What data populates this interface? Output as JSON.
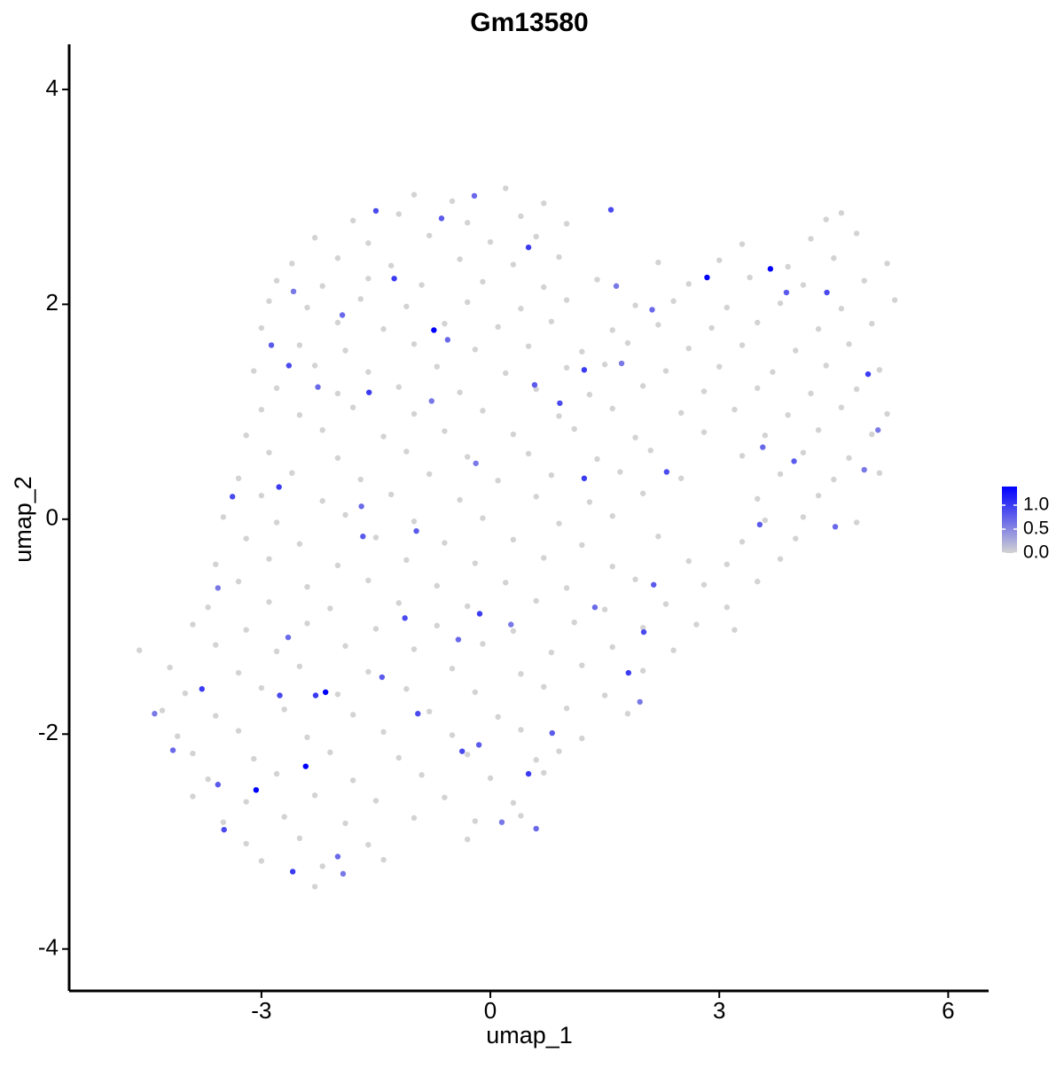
{
  "chart_data": {
    "type": "scatter",
    "title": "Gm13580",
    "x_label": "umap_1",
    "y_label": "umap_2",
    "xlim": [
      -5.52,
      6.53
    ],
    "ylim": [
      -4.39,
      4.42
    ],
    "xticks": [
      -3,
      0,
      3,
      6
    ],
    "yticks": [
      -4,
      -2,
      0,
      2,
      4
    ],
    "color_low": "#d3d3d3",
    "color_high": "#0000ff",
    "clim": [
      0,
      1.39
    ],
    "cticks": [
      {
        "value": 0,
        "label": "0.0"
      },
      {
        "value": 0.5,
        "label": "0.5"
      },
      {
        "value": 1,
        "label": "1.0"
      }
    ],
    "x": [
      -1.0,
      -0.5,
      0.2,
      0.7,
      -1.8,
      -1.2,
      -0.3,
      0.4,
      1.0,
      4.6,
      4.4,
      -2.3,
      -1.6,
      -0.8,
      0.0,
      0.6,
      3.3,
      4.2,
      4.8,
      -2.6,
      -2.0,
      -1.3,
      -0.4,
      0.3,
      0.9,
      2.2,
      3.0,
      3.9,
      4.5,
      5.2,
      -2.8,
      -2.2,
      -1.6,
      -0.9,
      -0.1,
      0.7,
      1.4,
      2.6,
      3.4,
      4.1,
      4.9,
      -2.9,
      -2.4,
      -1.7,
      -1.1,
      -0.3,
      0.4,
      1.0,
      1.9,
      2.4,
      3.1,
      3.8,
      4.6,
      5.3,
      -3.0,
      -2.0,
      -1.4,
      -0.6,
      0.1,
      0.8,
      1.6,
      2.2,
      2.9,
      3.5,
      4.3,
      5.0,
      -2.5,
      -1.9,
      -1.0,
      -0.2,
      0.5,
      1.2,
      1.8,
      2.6,
      3.3,
      4.0,
      4.7,
      -3.1,
      -2.3,
      -1.6,
      -0.7,
      0.2,
      1.0,
      1.5,
      2.3,
      3.0,
      3.7,
      4.4,
      5.1,
      -2.8,
      -2.0,
      -1.2,
      -0.4,
      0.6,
      1.3,
      2.0,
      2.8,
      3.5,
      4.2,
      4.8,
      -3.0,
      -2.5,
      -1.8,
      -1.0,
      -0.1,
      0.9,
      1.6,
      2.5,
      3.2,
      3.9,
      4.6,
      5.2,
      -3.2,
      -2.2,
      -1.4,
      -0.6,
      0.3,
      1.1,
      1.9,
      2.8,
      3.6,
      4.3,
      5.0,
      -2.9,
      -2.0,
      -1.1,
      -0.3,
      0.5,
      1.4,
      2.1,
      3.3,
      4.1,
      4.7,
      -3.3,
      -2.6,
      -1.7,
      -0.8,
      0.1,
      0.8,
      1.7,
      2.5,
      3.8,
      4.5,
      5.1,
      -3.0,
      -2.2,
      -1.3,
      -0.4,
      0.6,
      1.3,
      2.0,
      3.5,
      4.3,
      -3.5,
      -2.8,
      -1.9,
      -1.0,
      -0.1,
      0.9,
      1.6,
      3.6,
      4.1,
      4.8,
      -3.2,
      -2.5,
      -1.5,
      -0.6,
      0.3,
      1.2,
      2.2,
      3.3,
      4.0,
      -3.6,
      -2.9,
      -2.0,
      -1.1,
      -0.2,
      0.7,
      1.6,
      2.6,
      3.1,
      3.8,
      -3.3,
      -2.4,
      -1.6,
      -0.7,
      0.2,
      1.0,
      1.9,
      2.8,
      3.5,
      -3.7,
      -2.9,
      -2.1,
      -1.2,
      -0.3,
      0.6,
      1.5,
      2.3,
      3.1,
      -3.9,
      -3.2,
      -2.4,
      -1.5,
      -0.7,
      0.3,
      1.1,
      2.0,
      2.7,
      3.2,
      -4.6,
      -3.6,
      -2.8,
      -1.9,
      -1.0,
      -0.1,
      0.8,
      1.6,
      2.4,
      -4.2,
      -3.3,
      -2.5,
      -1.6,
      -0.5,
      0.4,
      1.2,
      2.0,
      -4.0,
      -3.0,
      -2.0,
      -1.1,
      -0.2,
      0.7,
      1.5,
      -4.3,
      -3.6,
      -2.7,
      -1.8,
      -0.8,
      0.1,
      1.0,
      1.8,
      -4.1,
      -3.3,
      -2.4,
      -1.4,
      -0.5,
      0.4,
      1.2,
      -3.9,
      -3.1,
      -2.1,
      -1.2,
      -0.3,
      0.6,
      0.9,
      -3.7,
      -2.8,
      -1.8,
      -0.9,
      0.0,
      0.7,
      -3.9,
      -3.2,
      -2.3,
      -1.5,
      -0.6,
      0.3,
      -3.5,
      -2.7,
      -1.9,
      -1.0,
      -0.2,
      0.4,
      -3.2,
      -2.5,
      -1.6,
      -0.3,
      -3.0,
      -2.2,
      -1.4,
      -2.3,
      -0.74,
      2.84,
      3.67,
      -2.16,
      -2.42,
      -3.07,
      -0.21,
      -0.64,
      -1.5,
      -1.26,
      -2.58,
      -1.94,
      -2.87,
      -2.64,
      -1.59,
      -0.77,
      -0.56,
      0.58,
      0.91,
      1.23,
      1.72,
      2.12,
      3.88,
      4.41,
      4.95,
      5.08,
      3.57,
      3.98,
      2.31,
      1.23,
      -0.19,
      -1.69,
      -0.97,
      -3.38,
      -2.77,
      -3.57,
      -2.65,
      -1.67,
      -1.12,
      -0.14,
      0.27,
      1.37,
      2.14,
      2.01,
      1.81,
      1.96,
      -0.42,
      -1.42,
      -2.76,
      -3.78,
      -4.4,
      -4.16,
      -3.57,
      -3.49,
      -2.59,
      -1.93,
      -2.0,
      -0.15,
      -0.37,
      0.5,
      0.15,
      0.6,
      0.81,
      -0.95,
      -2.29,
      4.9,
      4.52,
      3.53,
      1.58,
      0.5,
      1.65,
      -2.26
    ],
    "y": [
      3.02,
      2.96,
      3.08,
      2.94,
      2.78,
      2.84,
      2.76,
      2.82,
      2.75,
      2.85,
      2.79,
      2.62,
      2.57,
      2.64,
      2.58,
      2.63,
      2.56,
      2.61,
      2.66,
      2.38,
      2.43,
      2.36,
      2.42,
      2.37,
      2.44,
      2.39,
      2.41,
      2.35,
      2.43,
      2.38,
      2.22,
      2.17,
      2.24,
      2.18,
      2.21,
      2.16,
      2.23,
      2.19,
      2.25,
      2.18,
      2.22,
      2.03,
      1.97,
      2.05,
      1.98,
      2.02,
      1.96,
      2.04,
      1.99,
      2.03,
      1.97,
      2.01,
      1.96,
      2.04,
      1.78,
      1.83,
      1.77,
      1.82,
      1.79,
      1.84,
      1.76,
      1.81,
      1.78,
      1.83,
      1.77,
      1.82,
      1.62,
      1.57,
      1.63,
      1.58,
      1.61,
      1.56,
      1.64,
      1.59,
      1.62,
      1.57,
      1.63,
      1.38,
      1.43,
      1.37,
      1.42,
      1.36,
      1.41,
      1.44,
      1.38,
      1.42,
      1.37,
      1.43,
      1.39,
      1.22,
      1.17,
      1.23,
      1.18,
      1.21,
      1.16,
      1.24,
      1.19,
      1.22,
      1.17,
      1.21,
      1.02,
      0.97,
      1.04,
      0.98,
      1.01,
      0.96,
      1.03,
      0.99,
      1.02,
      0.97,
      1.04,
      0.98,
      0.78,
      0.83,
      0.77,
      0.82,
      0.79,
      0.84,
      0.76,
      0.81,
      0.78,
      0.83,
      0.79,
      0.62,
      0.57,
      0.63,
      0.58,
      0.61,
      0.56,
      0.64,
      0.59,
      0.62,
      0.57,
      0.38,
      0.43,
      0.37,
      0.42,
      0.36,
      0.41,
      0.44,
      0.38,
      0.42,
      0.37,
      0.43,
      0.22,
      0.17,
      0.23,
      0.18,
      0.21,
      0.16,
      0.24,
      0.19,
      0.22,
      0.02,
      -0.03,
      0.04,
      -0.02,
      0.01,
      -0.04,
      0.03,
      -0.01,
      0.02,
      -0.03,
      -0.18,
      -0.23,
      -0.17,
      -0.22,
      -0.19,
      -0.24,
      -0.16,
      -0.21,
      -0.18,
      -0.42,
      -0.37,
      -0.43,
      -0.38,
      -0.41,
      -0.36,
      -0.44,
      -0.39,
      -0.42,
      -0.37,
      -0.58,
      -0.63,
      -0.57,
      -0.62,
      -0.59,
      -0.64,
      -0.56,
      -0.61,
      -0.58,
      -0.82,
      -0.77,
      -0.83,
      -0.78,
      -0.81,
      -0.76,
      -0.84,
      -0.79,
      -0.82,
      -0.98,
      -1.03,
      -0.97,
      -1.02,
      -0.99,
      -1.04,
      -0.96,
      -1.01,
      -0.98,
      -1.03,
      -1.22,
      -1.17,
      -1.23,
      -1.18,
      -1.21,
      -1.16,
      -1.24,
      -1.19,
      -1.22,
      -1.38,
      -1.43,
      -1.37,
      -1.42,
      -1.39,
      -1.44,
      -1.36,
      -1.41,
      -1.62,
      -1.57,
      -1.63,
      -1.58,
      -1.61,
      -1.56,
      -1.64,
      -1.78,
      -1.83,
      -1.77,
      -1.82,
      -1.79,
      -1.84,
      -1.76,
      -1.81,
      -2.02,
      -1.97,
      -2.03,
      -1.98,
      -2.01,
      -1.96,
      -2.04,
      -2.18,
      -2.23,
      -2.17,
      -2.22,
      -2.19,
      -2.24,
      -2.16,
      -2.42,
      -2.37,
      -2.43,
      -2.38,
      -2.41,
      -2.36,
      -2.58,
      -2.63,
      -2.57,
      -2.62,
      -2.59,
      -2.64,
      -2.82,
      -2.77,
      -2.83,
      -2.78,
      -2.81,
      -2.76,
      -3.02,
      -2.97,
      -3.03,
      -2.98,
      -3.18,
      -3.23,
      -3.17,
      -3.42,
      1.76,
      2.25,
      2.33,
      -1.61,
      -2.3,
      -2.52,
      3.01,
      2.8,
      2.87,
      2.24,
      2.12,
      1.9,
      1.62,
      1.43,
      1.18,
      1.1,
      1.67,
      1.25,
      1.08,
      1.39,
      1.45,
      1.95,
      2.11,
      2.11,
      1.35,
      0.83,
      0.67,
      0.54,
      0.44,
      0.38,
      0.52,
      0.12,
      -0.11,
      0.21,
      0.3,
      -0.64,
      -1.1,
      -0.16,
      -0.92,
      -0.88,
      -0.98,
      -0.82,
      -0.61,
      -1.05,
      -1.43,
      -1.7,
      -1.12,
      -1.47,
      -1.64,
      -1.58,
      -1.81,
      -2.15,
      -2.47,
      -2.89,
      -3.28,
      -3.3,
      -3.14,
      -2.1,
      -2.16,
      -2.37,
      -2.82,
      -2.88,
      -1.99,
      -1.81,
      -1.64,
      0.46,
      -0.07,
      -0.05,
      2.88,
      2.53,
      2.17,
      1.23
    ],
    "values": [
      0,
      0,
      0,
      0,
      0,
      0,
      0,
      0,
      0,
      0,
      0,
      0,
      0,
      0,
      0,
      0,
      0,
      0,
      0,
      0,
      0,
      0,
      0,
      0,
      0,
      0,
      0,
      0,
      0,
      0,
      0,
      0,
      0,
      0,
      0,
      0,
      0,
      0,
      0,
      0,
      0,
      0,
      0,
      0,
      0,
      0,
      0,
      0,
      0,
      0,
      0,
      0,
      0,
      0,
      0,
      0,
      0,
      0,
      0,
      0,
      0,
      0,
      0,
      0,
      0,
      0,
      0,
      0,
      0,
      0,
      0,
      0,
      0,
      0,
      0,
      0,
      0,
      0,
      0,
      0,
      0,
      0,
      0,
      0,
      0,
      0,
      0,
      0,
      0,
      0,
      0,
      0,
      0,
      0,
      0,
      0,
      0,
      0,
      0,
      0,
      0,
      0,
      0,
      0,
      0,
      0,
      0,
      0,
      0,
      0,
      0,
      0,
      0,
      0,
      0,
      0,
      0,
      0,
      0,
      0,
      0,
      0,
      0,
      0,
      0,
      0,
      0,
      0,
      0,
      0,
      0,
      0,
      0,
      0,
      0,
      0,
      0,
      0,
      0,
      0,
      0,
      0,
      0,
      0,
      0,
      0,
      0,
      0,
      0,
      0,
      0,
      0,
      0,
      0,
      0,
      0,
      0,
      0,
      0,
      0,
      0,
      0,
      0,
      0,
      0,
      0,
      0,
      0,
      0,
      0,
      0,
      0,
      0,
      0,
      0,
      0,
      0,
      0,
      0,
      0,
      0,
      0,
      0,
      0,
      0,
      0,
      0,
      0,
      0,
      0,
      0,
      0,
      0,
      0,
      0,
      0,
      0,
      0,
      0,
      0,
      0,
      0,
      0,
      0,
      0,
      0,
      0,
      0,
      0,
      0,
      0,
      0,
      0,
      0,
      0,
      0,
      0,
      0,
      0,
      0,
      0,
      0,
      0,
      0,
      0,
      0,
      0,
      0,
      0,
      0,
      0,
      0,
      0,
      0,
      0,
      0,
      0,
      0,
      0,
      0,
      0,
      0,
      0,
      0,
      0,
      0,
      0,
      0,
      0,
      0,
      0,
      0,
      0,
      0,
      0,
      0,
      0,
      0,
      0,
      0,
      0,
      0,
      0,
      0,
      0,
      0,
      0,
      0,
      0,
      0,
      0,
      0,
      0,
      0,
      0,
      0,
      0,
      0,
      0,
      0,
      0,
      0,
      1.39,
      1.39,
      1.39,
      1.39,
      1.39,
      1.39,
      0.7,
      0.8,
      0.9,
      1.0,
      0.6,
      0.7,
      0.8,
      0.9,
      1.0,
      0.6,
      0.7,
      0.8,
      0.9,
      1.0,
      0.6,
      0.7,
      0.8,
      0.9,
      1.0,
      0.6,
      0.7,
      0.8,
      0.9,
      1.0,
      0.6,
      0.7,
      0.8,
      0.9,
      1.0,
      0.6,
      0.7,
      0.8,
      0.9,
      1.0,
      0.6,
      0.7,
      0.8,
      0.9,
      1.0,
      0.6,
      0.7,
      0.8,
      0.9,
      1.0,
      0.6,
      0.7,
      0.8,
      0.9,
      1.0,
      0.6,
      0.7,
      0.8,
      0.9,
      1.0,
      0.6,
      0.7,
      0.8,
      0.9,
      1.0,
      0.6,
      0.7,
      0.8,
      0.9,
      1.0,
      0.6,
      0.7
    ]
  }
}
